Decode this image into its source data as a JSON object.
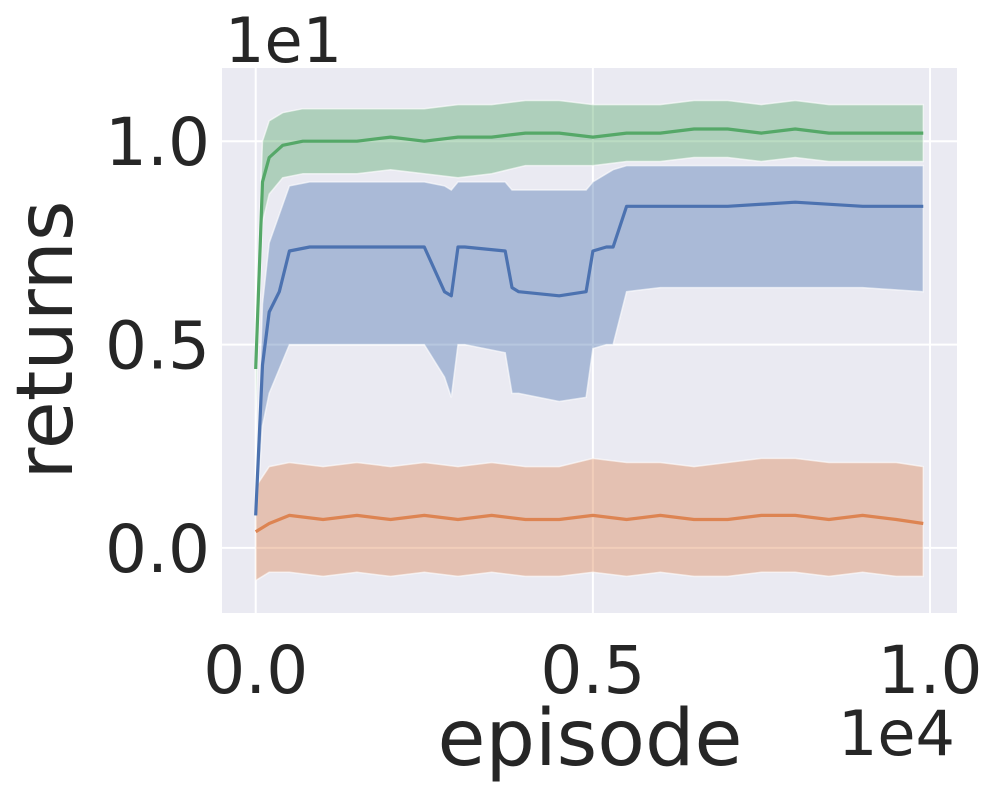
{
  "chart_data": {
    "type": "line",
    "title": "",
    "xlabel": "episode",
    "ylabel": "returns",
    "x_offset_label": "1e4",
    "y_offset_label": "1e1",
    "x_ticks": [
      "0.0",
      "0.5",
      "1.0"
    ],
    "y_ticks": [
      "0.0",
      "0.5",
      "1.0"
    ],
    "xlim": [
      -0.05,
      1.04
    ],
    "ylim": [
      -0.16,
      1.18
    ],
    "grid": true,
    "legend": "none",
    "colors": {
      "background": "#eaeaf2",
      "grid": "#ffffff",
      "green": "#55a868",
      "blue": "#4c72b0",
      "orange": "#dd8452"
    },
    "series": [
      {
        "color": "#55a868",
        "x": [
          0.0,
          0.01,
          0.02,
          0.04,
          0.07,
          0.1,
          0.15,
          0.2,
          0.25,
          0.3,
          0.35,
          0.4,
          0.45,
          0.5,
          0.55,
          0.6,
          0.65,
          0.7,
          0.75,
          0.8,
          0.85,
          0.9,
          0.95,
          0.99
        ],
        "y": [
          0.44,
          0.9,
          0.96,
          0.99,
          1.0,
          1.0,
          1.0,
          1.01,
          1.0,
          1.01,
          1.01,
          1.02,
          1.02,
          1.01,
          1.02,
          1.02,
          1.03,
          1.03,
          1.02,
          1.03,
          1.02,
          1.02,
          1.02,
          1.02
        ],
        "upper": [
          0.55,
          1.0,
          1.05,
          1.07,
          1.08,
          1.08,
          1.08,
          1.08,
          1.08,
          1.09,
          1.09,
          1.1,
          1.1,
          1.09,
          1.09,
          1.09,
          1.1,
          1.1,
          1.09,
          1.1,
          1.09,
          1.09,
          1.09,
          1.09
        ],
        "lower": [
          0.33,
          0.8,
          0.87,
          0.91,
          0.92,
          0.92,
          0.92,
          0.93,
          0.92,
          0.91,
          0.92,
          0.94,
          0.94,
          0.94,
          0.95,
          0.95,
          0.96,
          0.96,
          0.95,
          0.96,
          0.95,
          0.95,
          0.95,
          0.95
        ]
      },
      {
        "color": "#4c72b0",
        "x": [
          0.0,
          0.01,
          0.02,
          0.035,
          0.05,
          0.08,
          0.15,
          0.25,
          0.28,
          0.29,
          0.3,
          0.31,
          0.37,
          0.38,
          0.39,
          0.45,
          0.49,
          0.5,
          0.52,
          0.53,
          0.55,
          0.6,
          0.7,
          0.8,
          0.9,
          0.99
        ],
        "y": [
          0.08,
          0.45,
          0.58,
          0.63,
          0.73,
          0.74,
          0.74,
          0.74,
          0.63,
          0.62,
          0.74,
          0.74,
          0.73,
          0.64,
          0.63,
          0.62,
          0.63,
          0.73,
          0.74,
          0.74,
          0.84,
          0.84,
          0.84,
          0.85,
          0.84,
          0.84
        ],
        "upper": [
          0.12,
          0.6,
          0.75,
          0.82,
          0.89,
          0.9,
          0.9,
          0.9,
          0.89,
          0.88,
          0.9,
          0.9,
          0.9,
          0.88,
          0.88,
          0.88,
          0.88,
          0.9,
          0.92,
          0.93,
          0.94,
          0.94,
          0.94,
          0.94,
          0.94,
          0.94
        ],
        "lower": [
          0.04,
          0.3,
          0.38,
          0.44,
          0.5,
          0.5,
          0.5,
          0.5,
          0.42,
          0.37,
          0.5,
          0.5,
          0.48,
          0.38,
          0.38,
          0.36,
          0.37,
          0.49,
          0.5,
          0.5,
          0.63,
          0.64,
          0.64,
          0.64,
          0.64,
          0.63
        ]
      },
      {
        "color": "#dd8452",
        "x": [
          0.0,
          0.02,
          0.05,
          0.1,
          0.15,
          0.2,
          0.25,
          0.3,
          0.35,
          0.4,
          0.45,
          0.5,
          0.55,
          0.6,
          0.65,
          0.7,
          0.75,
          0.8,
          0.85,
          0.9,
          0.95,
          0.99
        ],
        "y": [
          0.04,
          0.06,
          0.08,
          0.07,
          0.08,
          0.07,
          0.08,
          0.07,
          0.08,
          0.07,
          0.07,
          0.08,
          0.07,
          0.08,
          0.07,
          0.07,
          0.08,
          0.08,
          0.07,
          0.08,
          0.07,
          0.06
        ],
        "upper": [
          0.15,
          0.2,
          0.21,
          0.2,
          0.21,
          0.2,
          0.21,
          0.2,
          0.21,
          0.2,
          0.2,
          0.22,
          0.21,
          0.21,
          0.2,
          0.21,
          0.22,
          0.22,
          0.21,
          0.21,
          0.21,
          0.2
        ],
        "lower": [
          -0.08,
          -0.06,
          -0.06,
          -0.07,
          -0.06,
          -0.07,
          -0.06,
          -0.07,
          -0.06,
          -0.07,
          -0.07,
          -0.06,
          -0.07,
          -0.06,
          -0.07,
          -0.07,
          -0.06,
          -0.06,
          -0.07,
          -0.06,
          -0.07,
          -0.07
        ]
      }
    ]
  }
}
